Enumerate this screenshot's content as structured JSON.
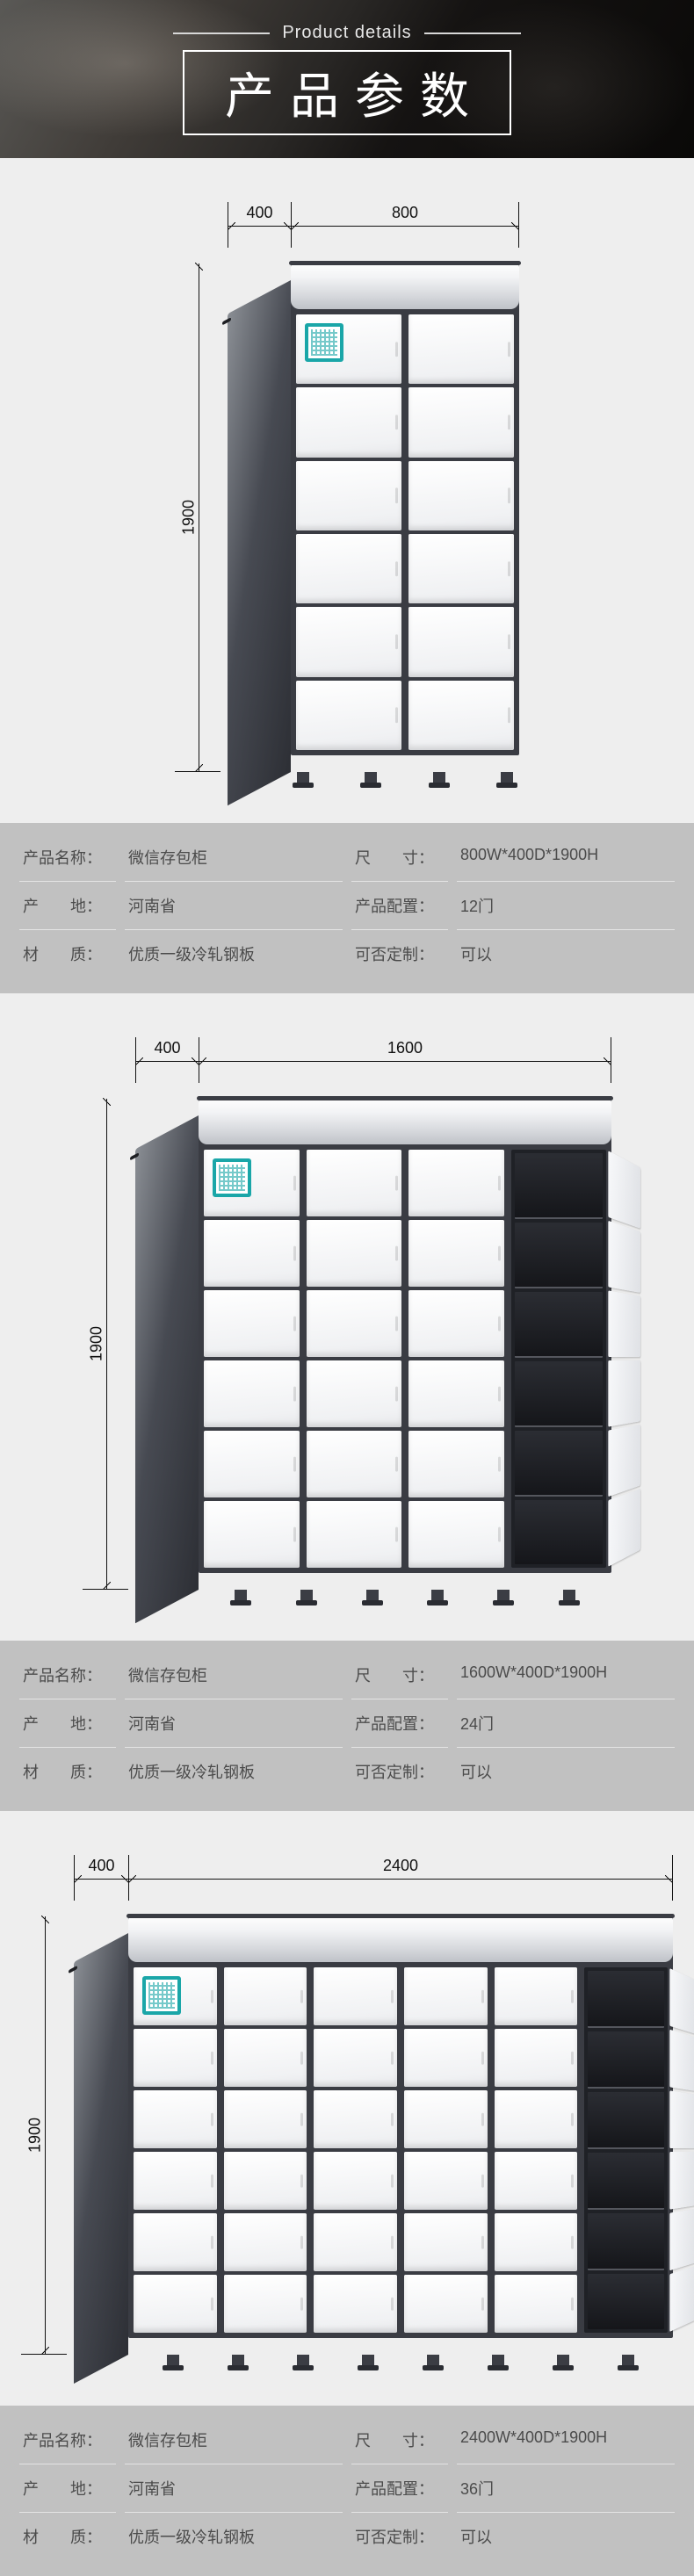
{
  "header": {
    "subtitle": "Product details",
    "title": "产品参数"
  },
  "products": [
    {
      "dims": {
        "depth": "400",
        "width": "800",
        "height": "1900"
      },
      "render": {
        "front_w": 260,
        "front_h": 560,
        "depth_w": 72,
        "cols": 2,
        "rows": 6,
        "open_last": false,
        "feet": 4
      },
      "spec": {
        "name_label": "产品名称：",
        "name_value": "微信存包柜",
        "size_label": "尺　　寸：",
        "size_value": "800W*400D*1900H",
        "origin_label": "产　　地：",
        "origin_value": "河南省",
        "config_label": "产品配置：",
        "config_value": "12门",
        "material_label": "材　　质：",
        "material_value": "优质一级冷轧钢板",
        "custom_label": "可否定制：",
        "custom_value": "可以"
      }
    },
    {
      "dims": {
        "depth": "400",
        "width": "1600",
        "height": "1900"
      },
      "render": {
        "front_w": 470,
        "front_h": 540,
        "depth_w": 72,
        "cols": 4,
        "rows": 6,
        "open_last": true,
        "feet": 6
      },
      "spec": {
        "name_label": "产品名称：",
        "name_value": "微信存包柜",
        "size_label": "尺　　寸：",
        "size_value": "1600W*400D*1900H",
        "origin_label": "产　　地：",
        "origin_value": "河南省",
        "config_label": "产品配置：",
        "config_value": "24门",
        "material_label": "材　　质：",
        "material_value": "优质一级冷轧钢板",
        "custom_label": "可否定制：",
        "custom_value": "可以"
      }
    },
    {
      "dims": {
        "depth": "400",
        "width": "2400",
        "height": "1900"
      },
      "render": {
        "front_w": 620,
        "front_h": 480,
        "depth_w": 62,
        "cols": 6,
        "rows": 6,
        "open_last": true,
        "feet": 8
      },
      "spec": {
        "name_label": "产品名称：",
        "name_value": "微信存包柜",
        "size_label": "尺　　寸：",
        "size_value": "2400W*400D*1900H",
        "origin_label": "产　　地：",
        "origin_value": "河南省",
        "config_label": "产品配置：",
        "config_value": "36门",
        "material_label": "材　　质：",
        "material_value": "优质一级冷轧钢板",
        "custom_label": "可否定制：",
        "custom_value": "可以"
      }
    }
  ]
}
